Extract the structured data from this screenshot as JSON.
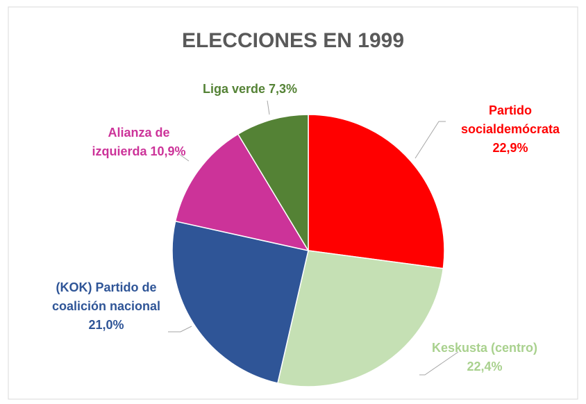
{
  "chart_data": {
    "type": "pie",
    "title": "ELECCIONES EN 1999",
    "categories": [
      "Partido socialdemócrata",
      "Keskusta (centro)",
      "(KOK) Partido de coalición nacional",
      "Alianza de izquierda",
      "Liga verde"
    ],
    "values": [
      22.9,
      22.4,
      21.0,
      10.9,
      7.3
    ],
    "value_labels": [
      "22,9%",
      "22,4%",
      "21,0%",
      "10,9%",
      "7,3%"
    ],
    "colors": [
      "#ff0000",
      "#c5e0b4",
      "#2f5597",
      "#cc3399",
      "#548235"
    ],
    "label_colors": [
      "#ff0000",
      "#a9d18e",
      "#2f5597",
      "#cc3399",
      "#548235"
    ]
  }
}
